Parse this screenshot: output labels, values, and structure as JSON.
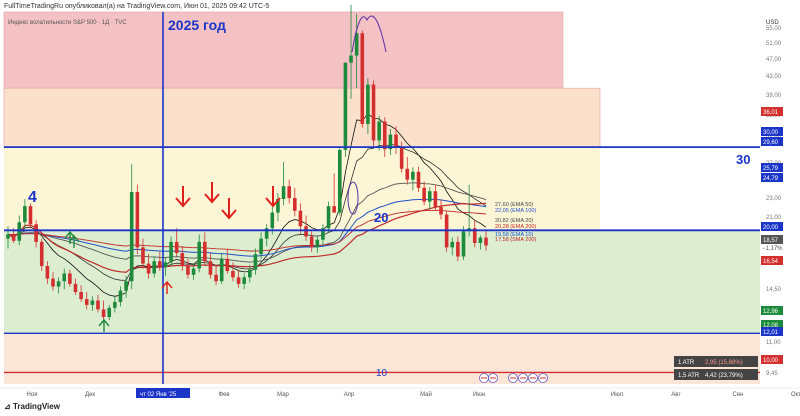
{
  "header": {
    "text": "FullTimeTradingRu опубликовал(а) на TradingView.com, Июн 01, 2025 09:42 UTC-5"
  },
  "footer": {
    "brand": "TradingView"
  },
  "chart_data": {
    "type": "candlestick",
    "title": "Индекс волатильности S&P 500 · 1Д · TVC",
    "currency": "USD",
    "y_scale": "log",
    "ylim": [
      9.45,
      58
    ],
    "x_ticks": [
      "Ноя",
      "Дек",
      "чт 02 Янв '25",
      "Фев",
      "Мар",
      "Апр",
      "Май",
      "Июн",
      "Июл",
      "Авг",
      "Сен",
      "Окт"
    ],
    "y_ticks": [
      "55,00",
      "51,00",
      "47,00",
      "43,00",
      "39,00",
      "35,00",
      "31,00",
      "27,00",
      "23,00",
      "21,00",
      "19,00",
      "17,00",
      "14,50",
      "13,50",
      "11,00",
      "9,45"
    ],
    "annotations_text": {
      "year": "2025 год",
      "level_30": "30",
      "level_20": "20",
      "level_10": "10",
      "level_4": "4"
    },
    "horizontal_levels": [
      30,
      20,
      12.1,
      10.0
    ],
    "vertical_marker": "чт 02 Янв '25",
    "zones": [
      {
        "name": "красная зона",
        "from": 40,
        "to": 58,
        "color": "#f4c2c4"
      },
      {
        "name": "оранжевая зона",
        "from": 30,
        "to": 40,
        "color": "#fbe1cc"
      },
      {
        "name": "жёлтая зона",
        "from": 20,
        "to": 30,
        "color": "#fdf6d6"
      },
      {
        "name": "зелёная зона",
        "from": 12.1,
        "to": 20,
        "color": "#dcedd0"
      },
      {
        "name": "нижняя зона",
        "from": 9.45,
        "to": 12.1,
        "color": "#fbe5d6"
      }
    ],
    "ma_labels": [
      {
        "text": "27,60 (EMA 50)",
        "color": "#444444"
      },
      {
        "text": "22,05 (EMA 100)",
        "color": "#2450c8"
      },
      {
        "text": "20,82 (EMA 20)",
        "color": "#444444"
      },
      {
        "text": "20,28 (EMA 200)",
        "color": "#c02828"
      },
      {
        "text": "19,58 (EMA 10)",
        "color": "#2450c8"
      },
      {
        "text": "17,58 (SMA 200)",
        "color": "#c02828"
      }
    ],
    "price_labels": [
      {
        "text": "36,01",
        "color": "#d32f2f"
      },
      {
        "text": "30,00",
        "color": "#1a35c8"
      },
      {
        "text": "29,60",
        "color": "#1a35c8"
      },
      {
        "text": "25,79",
        "color": "#1a35c8"
      },
      {
        "text": "24,79",
        "color": "#1a35c8"
      },
      {
        "text": "20,00",
        "color": "#1a35c8"
      },
      {
        "text": "18,57",
        "color": "#555555"
      },
      {
        "text": "16,54",
        "color": "#d32f2f"
      },
      {
        "text": "12,96",
        "color": "#1b8a3a"
      },
      {
        "text": "12,08",
        "color": "#1b8a3a"
      },
      {
        "text": "12,01",
        "color": "#1a35c8"
      },
      {
        "text": "10,00",
        "color": "#d32f2f"
      }
    ],
    "last_price": {
      "value": "18,57",
      "change": "−1,17%"
    },
    "atr_boxes": [
      {
        "label": "1 ATR",
        "value": "2,95 (15,88%)"
      },
      {
        "label": "1,5 ATR",
        "value": "4,42 (23,79%)"
      }
    ],
    "ohlc": [
      {
        "o": 19.2,
        "h": 20.4,
        "l": 18.3,
        "c": 19.6
      },
      {
        "o": 19.6,
        "h": 20.2,
        "l": 18.8,
        "c": 19.0
      },
      {
        "o": 19.0,
        "h": 21.5,
        "l": 18.6,
        "c": 20.8
      },
      {
        "o": 20.8,
        "h": 23.3,
        "l": 20.2,
        "c": 22.5
      },
      {
        "o": 22.5,
        "h": 22.8,
        "l": 20.2,
        "c": 20.6
      },
      {
        "o": 20.6,
        "h": 21.0,
        "l": 18.4,
        "c": 18.9
      },
      {
        "o": 18.9,
        "h": 19.2,
        "l": 16.4,
        "c": 16.8
      },
      {
        "o": 16.8,
        "h": 17.2,
        "l": 15.4,
        "c": 15.8
      },
      {
        "o": 15.8,
        "h": 16.3,
        "l": 14.9,
        "c": 15.2
      },
      {
        "o": 15.2,
        "h": 15.9,
        "l": 14.7,
        "c": 15.6
      },
      {
        "o": 15.6,
        "h": 16.6,
        "l": 15.0,
        "c": 16.2
      },
      {
        "o": 16.2,
        "h": 16.5,
        "l": 15.2,
        "c": 15.4
      },
      {
        "o": 15.4,
        "h": 15.8,
        "l": 14.6,
        "c": 14.8
      },
      {
        "o": 14.8,
        "h": 15.3,
        "l": 14.1,
        "c": 14.3
      },
      {
        "o": 14.3,
        "h": 14.8,
        "l": 13.6,
        "c": 13.9
      },
      {
        "o": 13.9,
        "h": 14.5,
        "l": 13.5,
        "c": 14.2
      },
      {
        "o": 14.2,
        "h": 14.6,
        "l": 13.4,
        "c": 13.6
      },
      {
        "o": 13.6,
        "h": 14.2,
        "l": 12.7,
        "c": 13.1
      },
      {
        "o": 13.1,
        "h": 13.9,
        "l": 12.9,
        "c": 13.7
      },
      {
        "o": 13.7,
        "h": 14.5,
        "l": 13.4,
        "c": 14.1
      },
      {
        "o": 14.1,
        "h": 15.2,
        "l": 13.8,
        "c": 14.9
      },
      {
        "o": 14.9,
        "h": 16.0,
        "l": 14.4,
        "c": 15.6
      },
      {
        "o": 15.6,
        "h": 27.6,
        "l": 15.0,
        "c": 24.1
      },
      {
        "o": 24.1,
        "h": 25.0,
        "l": 17.8,
        "c": 18.4
      },
      {
        "o": 18.4,
        "h": 19.2,
        "l": 16.6,
        "c": 17.0
      },
      {
        "o": 17.0,
        "h": 17.8,
        "l": 15.8,
        "c": 16.2
      },
      {
        "o": 16.2,
        "h": 17.6,
        "l": 15.9,
        "c": 17.2
      },
      {
        "o": 17.2,
        "h": 18.0,
        "l": 16.4,
        "c": 16.7
      },
      {
        "o": 16.7,
        "h": 17.5,
        "l": 16.0,
        "c": 17.1
      },
      {
        "o": 17.1,
        "h": 19.4,
        "l": 16.8,
        "c": 18.9
      },
      {
        "o": 18.9,
        "h": 20.2,
        "l": 17.6,
        "c": 17.9
      },
      {
        "o": 17.9,
        "h": 18.5,
        "l": 16.4,
        "c": 16.8
      },
      {
        "o": 16.8,
        "h": 17.4,
        "l": 15.8,
        "c": 16.1
      },
      {
        "o": 16.1,
        "h": 17.0,
        "l": 15.7,
        "c": 16.6
      },
      {
        "o": 16.6,
        "h": 19.6,
        "l": 16.3,
        "c": 18.9
      },
      {
        "o": 18.9,
        "h": 19.8,
        "l": 16.9,
        "c": 17.2
      },
      {
        "o": 17.2,
        "h": 17.9,
        "l": 15.8,
        "c": 16.1
      },
      {
        "o": 16.1,
        "h": 16.8,
        "l": 15.3,
        "c": 15.6
      },
      {
        "o": 15.6,
        "h": 17.9,
        "l": 15.4,
        "c": 17.4
      },
      {
        "o": 17.4,
        "h": 18.3,
        "l": 16.2,
        "c": 16.4
      },
      {
        "o": 16.4,
        "h": 17.1,
        "l": 15.6,
        "c": 15.9
      },
      {
        "o": 15.9,
        "h": 16.5,
        "l": 15.1,
        "c": 15.4
      },
      {
        "o": 15.4,
        "h": 16.2,
        "l": 15.0,
        "c": 15.9
      },
      {
        "o": 15.9,
        "h": 16.9,
        "l": 15.5,
        "c": 16.5
      },
      {
        "o": 16.5,
        "h": 18.3,
        "l": 16.1,
        "c": 17.8
      },
      {
        "o": 17.8,
        "h": 19.8,
        "l": 17.4,
        "c": 19.2
      },
      {
        "o": 19.2,
        "h": 20.6,
        "l": 18.5,
        "c": 20.2
      },
      {
        "o": 20.2,
        "h": 22.4,
        "l": 19.6,
        "c": 21.8
      },
      {
        "o": 21.8,
        "h": 24.0,
        "l": 20.9,
        "c": 23.3
      },
      {
        "o": 23.3,
        "h": 27.9,
        "l": 22.6,
        "c": 24.8
      },
      {
        "o": 24.8,
        "h": 25.6,
        "l": 22.8,
        "c": 23.4
      },
      {
        "o": 23.4,
        "h": 24.6,
        "l": 21.4,
        "c": 22.0
      },
      {
        "o": 22.0,
        "h": 22.8,
        "l": 19.7,
        "c": 20.4
      },
      {
        "o": 20.4,
        "h": 21.5,
        "l": 19.0,
        "c": 19.4
      },
      {
        "o": 19.4,
        "h": 19.9,
        "l": 18.0,
        "c": 18.4
      },
      {
        "o": 18.4,
        "h": 19.5,
        "l": 17.9,
        "c": 19.1
      },
      {
        "o": 19.1,
        "h": 20.6,
        "l": 18.6,
        "c": 20.2
      },
      {
        "o": 20.2,
        "h": 23.0,
        "l": 19.8,
        "c": 22.5
      },
      {
        "o": 22.5,
        "h": 26.4,
        "l": 21.8,
        "c": 21.8
      },
      {
        "o": 21.8,
        "h": 30.0,
        "l": 21.5,
        "c": 29.6
      },
      {
        "o": 29.6,
        "h": 45.3,
        "l": 28.6,
        "c": 45.3
      },
      {
        "o": 45.3,
        "h": 60.1,
        "l": 38.0,
        "c": 46.9
      },
      {
        "o": 46.9,
        "h": 57.5,
        "l": 40.0,
        "c": 52.3
      },
      {
        "o": 52.3,
        "h": 53.0,
        "l": 33.0,
        "c": 33.6
      },
      {
        "o": 33.6,
        "h": 42.0,
        "l": 32.0,
        "c": 40.7
      },
      {
        "o": 40.7,
        "h": 41.5,
        "l": 30.1,
        "c": 31.0
      },
      {
        "o": 31.0,
        "h": 35.0,
        "l": 29.5,
        "c": 34.0
      },
      {
        "o": 34.0,
        "h": 34.7,
        "l": 28.6,
        "c": 29.7
      },
      {
        "o": 29.7,
        "h": 32.8,
        "l": 28.9,
        "c": 31.9
      },
      {
        "o": 31.9,
        "h": 33.2,
        "l": 29.0,
        "c": 30.1
      },
      {
        "o": 30.1,
        "h": 30.8,
        "l": 26.5,
        "c": 27.0
      },
      {
        "o": 27.0,
        "h": 28.6,
        "l": 25.0,
        "c": 25.6
      },
      {
        "o": 25.6,
        "h": 27.2,
        "l": 24.3,
        "c": 26.6
      },
      {
        "o": 26.6,
        "h": 27.3,
        "l": 24.1,
        "c": 24.6
      },
      {
        "o": 24.6,
        "h": 25.4,
        "l": 22.6,
        "c": 23.0
      },
      {
        "o": 23.0,
        "h": 24.7,
        "l": 22.1,
        "c": 24.2
      },
      {
        "o": 24.2,
        "h": 25.0,
        "l": 22.0,
        "c": 22.4
      },
      {
        "o": 22.4,
        "h": 23.2,
        "l": 21.1,
        "c": 21.6
      },
      {
        "o": 21.6,
        "h": 22.0,
        "l": 18.0,
        "c": 18.4
      },
      {
        "o": 18.4,
        "h": 19.3,
        "l": 17.7,
        "c": 18.9
      },
      {
        "o": 18.9,
        "h": 19.4,
        "l": 17.2,
        "c": 17.6
      },
      {
        "o": 17.6,
        "h": 20.4,
        "l": 17.3,
        "c": 19.9
      },
      {
        "o": 19.9,
        "h": 25.0,
        "l": 19.4,
        "c": 20.2
      },
      {
        "o": 20.2,
        "h": 21.0,
        "l": 18.4,
        "c": 18.8
      },
      {
        "o": 18.8,
        "h": 19.5,
        "l": 18.2,
        "c": 19.3
      },
      {
        "o": 19.3,
        "h": 20.0,
        "l": 18.1,
        "c": 18.57
      }
    ]
  }
}
